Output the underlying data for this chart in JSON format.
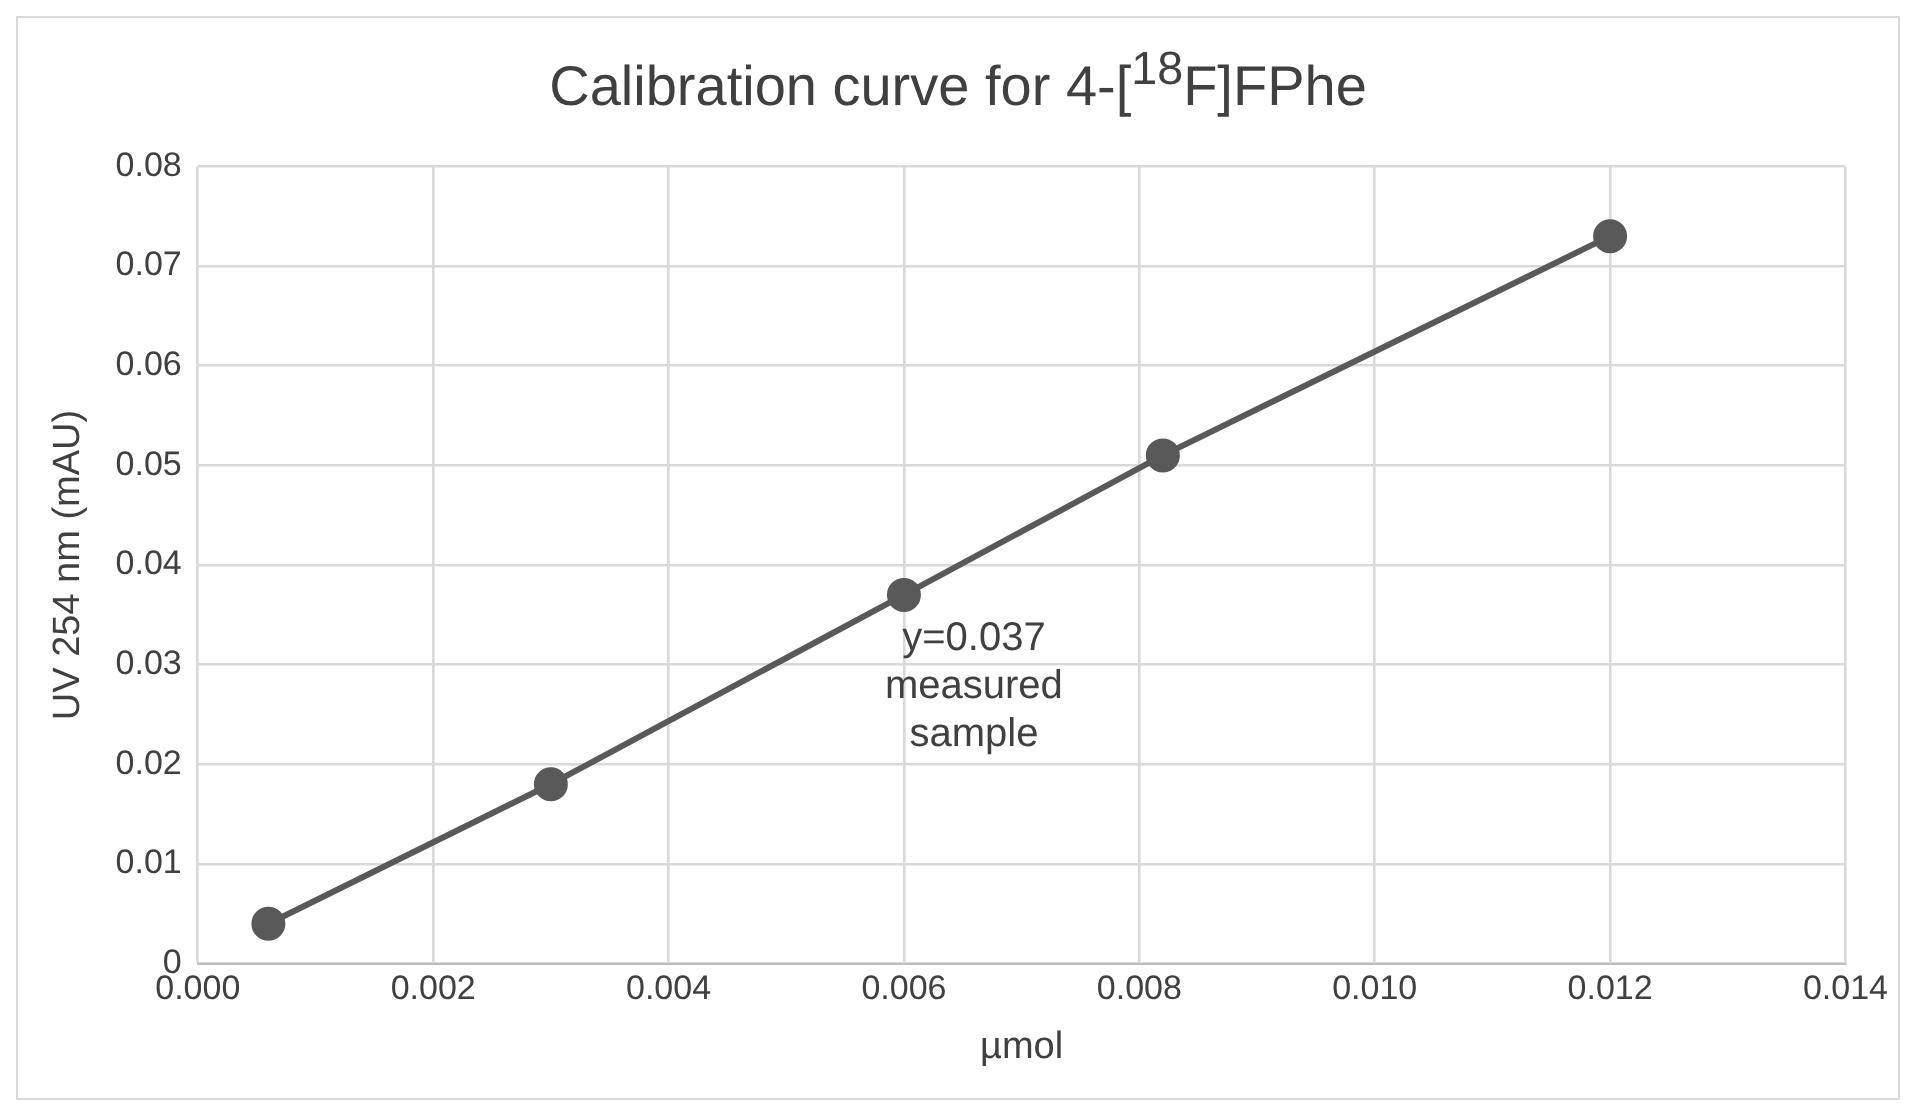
{
  "chart_data": {
    "type": "line",
    "title": "Calibration curve for 4-[$^{18}$F]FPhe",
    "xlabel": "µmol",
    "ylabel": "UV 254 nm (mAU)",
    "x": [
      0.0006,
      0.003,
      0.006,
      0.0082,
      0.012
    ],
    "series": [
      {
        "color": "#595959",
        "values": [
          0.004,
          0.018,
          0.037,
          0.051,
          0.073
        ]
      }
    ],
    "xlim": [
      0,
      0.014
    ],
    "xticks": [
      {
        "value": 0,
        "label": "0.000"
      },
      {
        "value": 0.002,
        "label": "0.002"
      },
      {
        "value": 0.004,
        "label": "0.004"
      },
      {
        "value": 0.006,
        "label": "0.006"
      },
      {
        "value": 0.008,
        "label": "0.008"
      },
      {
        "value": 0.01,
        "label": "0.010"
      },
      {
        "value": 0.012,
        "label": "0.012"
      },
      {
        "value": 0.014,
        "label": "0.014"
      }
    ],
    "ylim": [
      0,
      0.08
    ],
    "yticks": [
      0,
      0.01,
      0.02,
      0.03,
      0.04,
      0.05,
      0.06,
      0.07,
      0.08
    ],
    "grid": true,
    "legend": false,
    "marker": "circle",
    "line_style": "solid",
    "annotations": [
      {
        "text": "y=0.037 measured sample",
        "x": 0.006,
        "y": 0.037
      }
    ]
  }
}
